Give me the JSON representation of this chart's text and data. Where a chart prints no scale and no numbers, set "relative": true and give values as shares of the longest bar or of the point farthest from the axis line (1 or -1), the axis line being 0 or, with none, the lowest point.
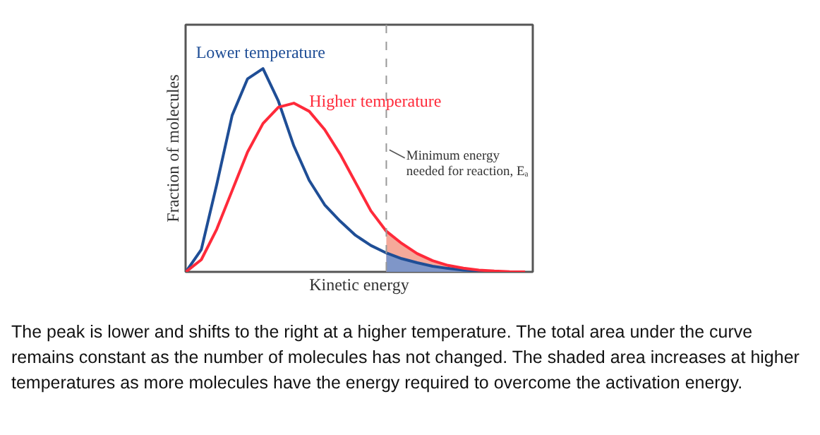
{
  "chart_data": {
    "type": "line",
    "relative": true,
    "xlabel": "Kinetic energy",
    "ylabel": "Fraction of molecules",
    "categories": [
      null,
      null,
      null,
      null,
      null,
      null,
      null,
      null,
      null,
      null,
      null,
      null,
      null,
      null,
      null,
      null,
      null,
      null,
      null,
      null,
      null,
      null,
      null
    ],
    "series": [
      {
        "type": "area",
        "color": "#f5a99a",
        "values": [
          null,
          null,
          null,
          null,
          null,
          null,
          null,
          null,
          null,
          null,
          null,
          null,
          null,
          0.2,
          0.14,
          0.09,
          0.055,
          0.032,
          0.018,
          0.009,
          0.004,
          0.001,
          0
        ]
      },
      {
        "type": "area",
        "color": "#7f96c8",
        "values": [
          null,
          null,
          null,
          null,
          null,
          null,
          null,
          null,
          null,
          null,
          null,
          null,
          null,
          0.093,
          0.065,
          0.045,
          0.028,
          0.017,
          0.009,
          0.005,
          0.002,
          null,
          null
        ]
      },
      {
        "name": "Lower temperature",
        "color": "#1f4e96",
        "values": [
          0,
          0.11,
          0.43,
          0.77,
          0.95,
          1,
          0.84,
          0.62,
          0.45,
          0.33,
          0.25,
          0.18,
          0.13,
          0.093,
          0.065,
          0.045,
          0.028,
          0.017,
          0.009,
          0.005,
          0.002,
          null,
          null
        ]
      },
      {
        "name": "Higher temperature",
        "color": "#ff2a3a",
        "values": [
          0,
          0.06,
          0.21,
          0.4,
          0.59,
          0.73,
          0.81,
          0.83,
          0.79,
          0.7,
          0.58,
          0.44,
          0.3,
          0.2,
          0.14,
          0.09,
          0.055,
          0.032,
          0.018,
          0.009,
          0.004,
          0.001,
          0
        ]
      }
    ],
    "annotations": [
      "Minimum energy\nneeded for reaction, Eₐ",
      "The peak is lower and shifts to the right at a higher temperature. The total area under the curve remains constant as the number of molecules has not changed. The shaded area increases at higher temperatures as more molecules have the energy required to overcome the activation energy."
    ],
    "line_style": "solid"
  }
}
